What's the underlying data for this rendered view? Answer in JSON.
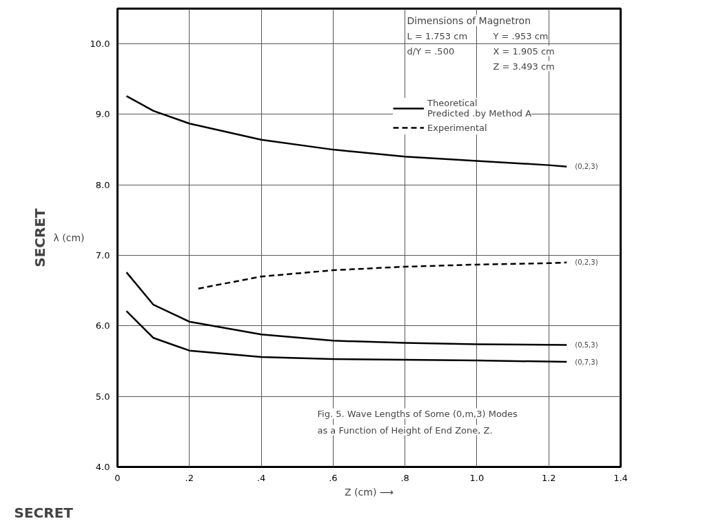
{
  "chart_data": {
    "type": "line",
    "xlabel": "Z (cm) ⟶",
    "ylabel": "λ (cm)",
    "xlim": [
      0,
      1.4
    ],
    "ylim": [
      4.0,
      10.5
    ],
    "xticks": [
      0,
      {
        "value": 0.2,
        "label": ".2"
      },
      {
        "value": 0.4,
        "label": ".4"
      },
      {
        "value": 0.6,
        "label": ".6"
      },
      {
        "value": 0.8,
        "label": ".8"
      },
      {
        "value": 1.0,
        "label": "1.0"
      },
      {
        "value": 1.2,
        "label": "1.2"
      },
      {
        "value": 1.4,
        "label": "1.4"
      }
    ],
    "yticks": [
      {
        "value": 4,
        "label": "4.0"
      },
      {
        "value": 5,
        "label": "5.0"
      },
      {
        "value": 6,
        "label": "6.0"
      },
      {
        "value": 7,
        "label": "7.0"
      },
      {
        "value": 8,
        "label": "8.0"
      },
      {
        "value": 9,
        "label": "9.0"
      },
      {
        "value": 10,
        "label": "10.0"
      }
    ],
    "grid": true,
    "legend": "top right",
    "marker": "none",
    "series": [
      {
        "name": "Theoretical\nPredicted .by Method A",
        "color": "#000000",
        "line_style": "solid",
        "x": [
          0.025,
          0.1,
          0.2,
          0.4,
          0.6,
          0.8,
          1.0,
          1.2,
          1.25
        ],
        "values": [
          9.26,
          9.05,
          8.87,
          8.64,
          8.5,
          8.4,
          8.34,
          8.28,
          8.26
        ]
      },
      {
        "name": "Experimental",
        "color": "#000000",
        "line_style": "dashed",
        "x": [
          0.225,
          0.4,
          0.6,
          0.8,
          1.0,
          1.2,
          1.25
        ],
        "values": [
          6.53,
          6.7,
          6.79,
          6.84,
          6.87,
          6.89,
          6.9
        ]
      },
      {
        "color": "#000000",
        "line_style": "solid",
        "x": [
          0.025,
          0.1,
          0.2,
          0.4,
          0.6,
          0.8,
          1.0,
          1.25
        ],
        "values": [
          6.76,
          6.3,
          6.06,
          5.88,
          5.79,
          5.76,
          5.74,
          5.73
        ]
      },
      {
        "color": "#000000",
        "line_style": "solid",
        "x": [
          0.025,
          0.1,
          0.2,
          0.4,
          0.6,
          0.8,
          1.0,
          1.25
        ],
        "values": [
          6.21,
          5.83,
          5.65,
          5.56,
          5.53,
          5.52,
          5.51,
          5.49
        ]
      }
    ],
    "annotations": [
      "(0,2,3)",
      "(0,2,3)",
      "(0,5,3)",
      "(0,7,3)",
      "Dimensions of Magnetron",
      "L = 1.753 cm",
      "Y = .953 cm",
      "d/Y = .500",
      "X = 1.905 cm",
      "Z = 3.493 cm",
      "Fig. 5. Wave Lengths of Some (0,m,3) Modes",
      "as a Function of Height of End Zone, Z.",
      "SECRET",
      "SECRET"
    ]
  }
}
